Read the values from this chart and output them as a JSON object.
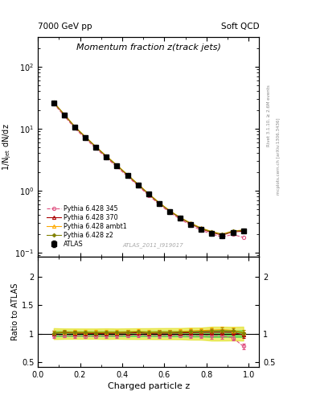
{
  "title_main": "Momentum fraction z(track jets)",
  "header_left": "7000 GeV pp",
  "header_right": "Soft QCD",
  "ylabel_main": "1/N$_\\mathrm{jet}$ dN/dz",
  "ylabel_ratio": "Ratio to ATLAS",
  "xlabel": "Charged particle z",
  "watermark": "ATLAS_2011_I919017",
  "right_label_top": "Rivet 3.1.10, ≥ 2.6M events",
  "right_label_bottom": "mcplots.cern.ch [arXiv:1306.3436]",
  "z_centers": [
    0.075,
    0.125,
    0.175,
    0.225,
    0.275,
    0.325,
    0.375,
    0.425,
    0.475,
    0.525,
    0.575,
    0.625,
    0.675,
    0.725,
    0.775,
    0.825,
    0.875,
    0.925,
    0.975
  ],
  "atlas_y": [
    26.0,
    16.5,
    10.5,
    7.2,
    5.0,
    3.5,
    2.5,
    1.75,
    1.22,
    0.87,
    0.62,
    0.46,
    0.355,
    0.285,
    0.235,
    0.205,
    0.185,
    0.21,
    0.225
  ],
  "atlas_yerr": [
    1.0,
    0.6,
    0.38,
    0.26,
    0.18,
    0.13,
    0.09,
    0.065,
    0.046,
    0.033,
    0.024,
    0.018,
    0.014,
    0.012,
    0.01,
    0.01,
    0.009,
    0.01,
    0.011
  ],
  "py345_y": [
    25.2,
    16.0,
    10.1,
    6.9,
    4.78,
    3.38,
    2.4,
    1.7,
    1.19,
    0.84,
    0.6,
    0.445,
    0.345,
    0.275,
    0.228,
    0.198,
    0.178,
    0.195,
    0.175
  ],
  "py370_y": [
    26.2,
    16.8,
    10.6,
    7.25,
    5.02,
    3.52,
    2.52,
    1.77,
    1.24,
    0.875,
    0.625,
    0.465,
    0.36,
    0.29,
    0.24,
    0.21,
    0.19,
    0.215,
    0.22
  ],
  "pyambt1_y": [
    26.5,
    17.0,
    10.8,
    7.4,
    5.12,
    3.6,
    2.57,
    1.81,
    1.27,
    0.895,
    0.64,
    0.475,
    0.368,
    0.298,
    0.248,
    0.218,
    0.198,
    0.222,
    0.23
  ],
  "pyz2_y": [
    26.3,
    16.9,
    10.7,
    7.35,
    5.08,
    3.57,
    2.55,
    1.79,
    1.26,
    0.885,
    0.635,
    0.47,
    0.365,
    0.295,
    0.245,
    0.215,
    0.195,
    0.22,
    0.228
  ],
  "color_atlas": "#000000",
  "color_345": "#e05080",
  "color_370": "#aa0000",
  "color_ambt1": "#ffaa00",
  "color_z2": "#808000",
  "band_inner_color": "#00cc44",
  "band_inner_alpha": 0.45,
  "band_outer_color": "#dddd00",
  "band_outer_alpha": 0.55,
  "ylim_main": [
    0.085,
    300
  ],
  "ylim_ratio": [
    0.42,
    2.35
  ],
  "xlim": [
    0.0,
    1.05
  ]
}
